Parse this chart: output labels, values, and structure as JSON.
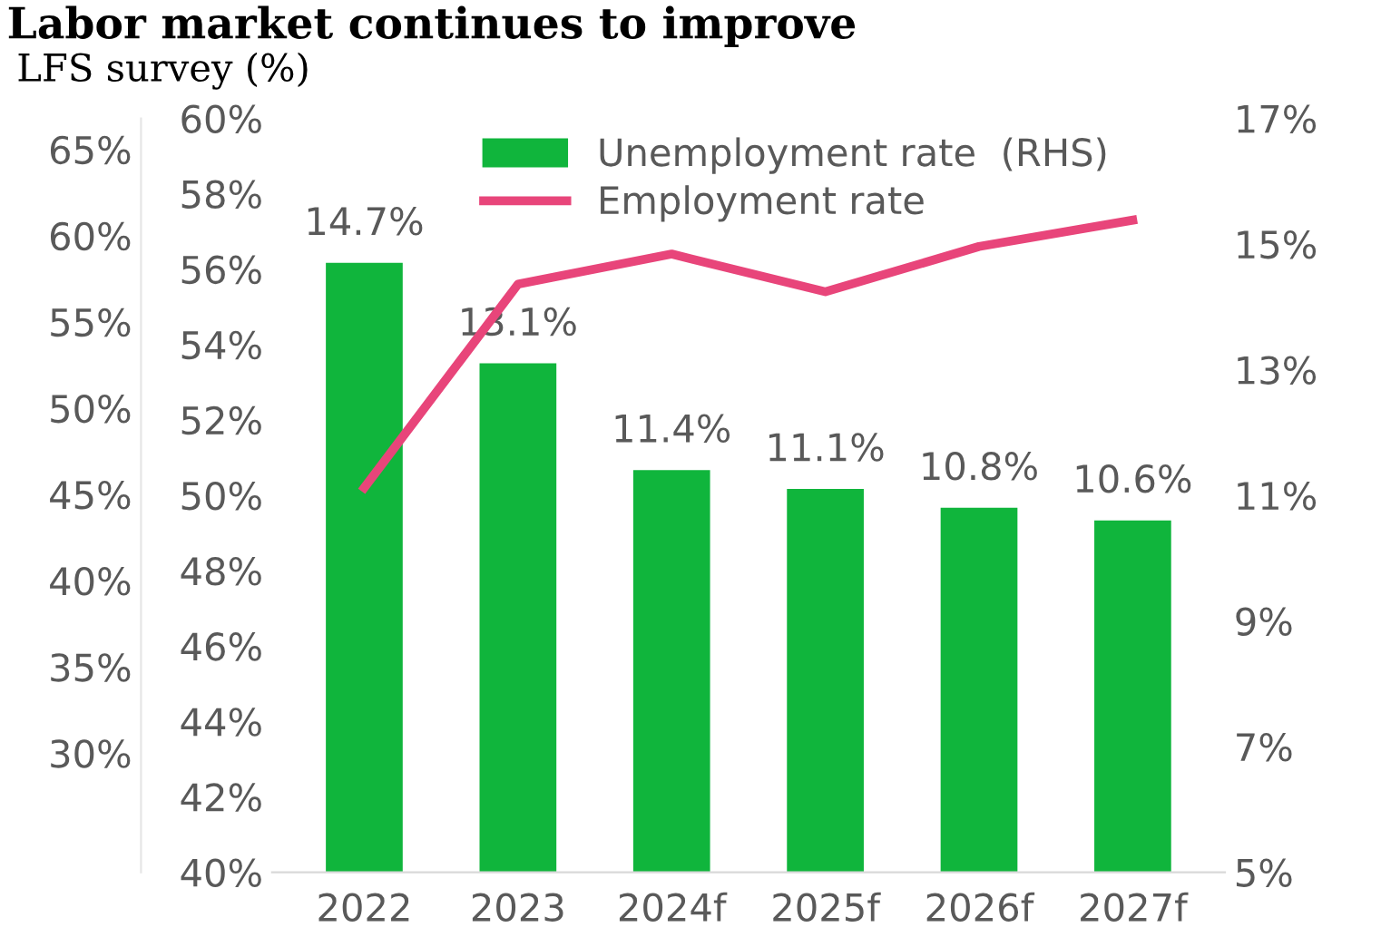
{
  "chart_data": {
    "type": "bar",
    "title": "Labor market continues to improve",
    "subtitle": "LFS survey (%)",
    "categories": [
      "2022",
      "2023",
      "2024f",
      "2025f",
      "2026f",
      "2027f"
    ],
    "series": [
      {
        "name": "Unemployment rate  (RHS)",
        "axis": "y2",
        "color": "#10b53c",
        "values": [
          14.7,
          13.1,
          11.4,
          11.1,
          10.8,
          10.6
        ],
        "value_labels": [
          "14.7%",
          "13.1%",
          "11.4%",
          "11.1%",
          "10.8%",
          "10.6%"
        ]
      },
      {
        "name": "Employment rate",
        "type": "line",
        "color": "#e8457a",
        "values": [
          50.2,
          55.6,
          56.4,
          55.4,
          56.6,
          57.3
        ]
      }
    ],
    "ylim": [
      40,
      60
    ],
    "yticks": [
      {
        "value": 40,
        "label": "40%"
      },
      {
        "value": 42,
        "label": "42%"
      },
      {
        "value": 44,
        "label": "44%"
      },
      {
        "value": 46,
        "label": "46%"
      },
      {
        "value": 48,
        "label": "48%"
      },
      {
        "value": 50,
        "label": "50%"
      },
      {
        "value": 52,
        "label": "52%"
      },
      {
        "value": 54,
        "label": "54%"
      },
      {
        "value": 56,
        "label": "56%"
      },
      {
        "value": 58,
        "label": "58%"
      },
      {
        "value": 60,
        "label": "60%"
      }
    ],
    "y2lim": [
      5,
      17
    ],
    "y2ticks": [
      {
        "value": 5,
        "label": "5%"
      },
      {
        "value": 7,
        "label": "7%"
      },
      {
        "value": 9,
        "label": "9%"
      },
      {
        "value": 11,
        "label": "11%"
      },
      {
        "value": 13,
        "label": "13%"
      },
      {
        "value": 15,
        "label": "15%"
      },
      {
        "value": 17,
        "label": "17%"
      }
    ],
    "y3lim": [
      23.1,
      66.8
    ],
    "y3ticks": [
      {
        "value": 30,
        "label": "30%"
      },
      {
        "value": 35,
        "label": "35%"
      },
      {
        "value": 40,
        "label": "40%"
      },
      {
        "value": 45,
        "label": "45%"
      },
      {
        "value": 50,
        "label": "50%"
      },
      {
        "value": 55,
        "label": "55%"
      },
      {
        "value": 60,
        "label": "60%"
      },
      {
        "value": 65,
        "label": "65%"
      }
    ],
    "legend": "top",
    "grid": false,
    "marker": "none",
    "line_style": "solid"
  }
}
